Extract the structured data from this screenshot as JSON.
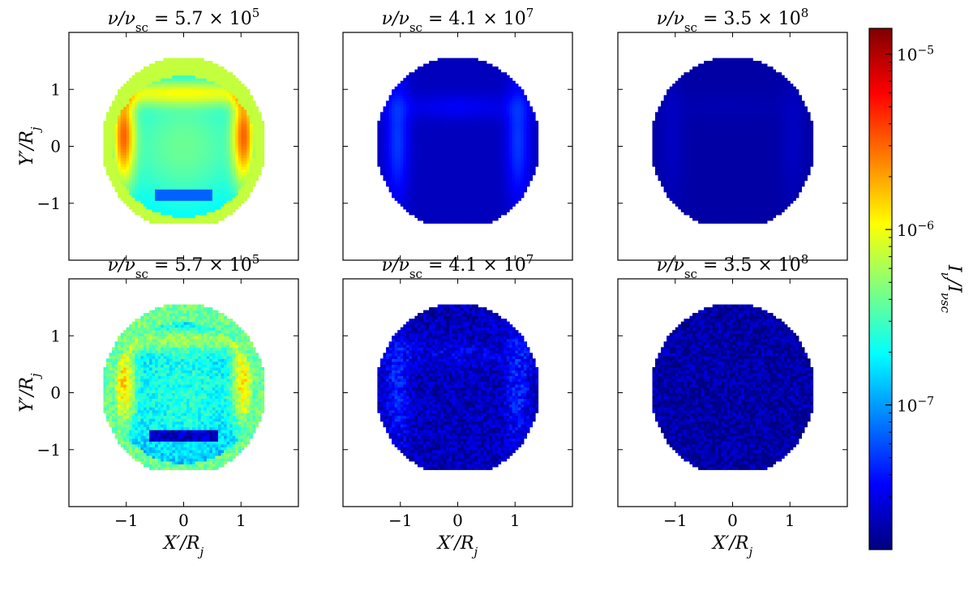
{
  "chart_data": {
    "type": "heatmap",
    "colormap": "jet",
    "panels": [
      {
        "row": 0,
        "col": 0,
        "title": "ν/νsc = 5.7 × 10^5",
        "brightness": 0.86,
        "noise": false,
        "lower_arc": "blue"
      },
      {
        "row": 0,
        "col": 1,
        "title": "ν/νsc = 4.1 × 10^7",
        "brightness": 0.3,
        "noise": false,
        "lower_arc": "none"
      },
      {
        "row": 0,
        "col": 2,
        "title": "ν/νsc = 3.5 × 10^8",
        "brightness": 0.07,
        "noise": false,
        "lower_arc": "none"
      },
      {
        "row": 1,
        "col": 0,
        "title": "ν/νsc = 5.7 × 10^5",
        "brightness": 0.72,
        "noise": true,
        "lower_arc": "dark"
      },
      {
        "row": 1,
        "col": 1,
        "title": "ν/νsc = 4.1 × 10^7",
        "brightness": 0.25,
        "noise": true,
        "lower_arc": "none"
      },
      {
        "row": 1,
        "col": 2,
        "title": "ν/νsc = 3.5 × 10^8",
        "brightness": 0.03,
        "noise": true,
        "lower_arc": "none"
      }
    ],
    "x_axis": {
      "label": "X′/Rj",
      "range": [
        -2,
        2
      ],
      "ticks": [
        -1,
        0,
        1
      ],
      "tick_labels": [
        "−1",
        "0",
        "1"
      ]
    },
    "y_axis": {
      "label": "Y′/Rj",
      "range": [
        -2,
        2
      ],
      "ticks": [
        -1,
        0,
        1
      ],
      "tick_labels": [
        "−1",
        "0",
        "1"
      ]
    },
    "colorbar": {
      "label": "Iν/Iνsc",
      "scale": "log",
      "range": [
        1.5e-08,
        1.4e-05
      ],
      "major_ticks": [
        1e-07,
        1e-06,
        1e-05
      ],
      "major_tick_labels": [
        "10−7",
        "10−6",
        "10−5"
      ]
    }
  }
}
